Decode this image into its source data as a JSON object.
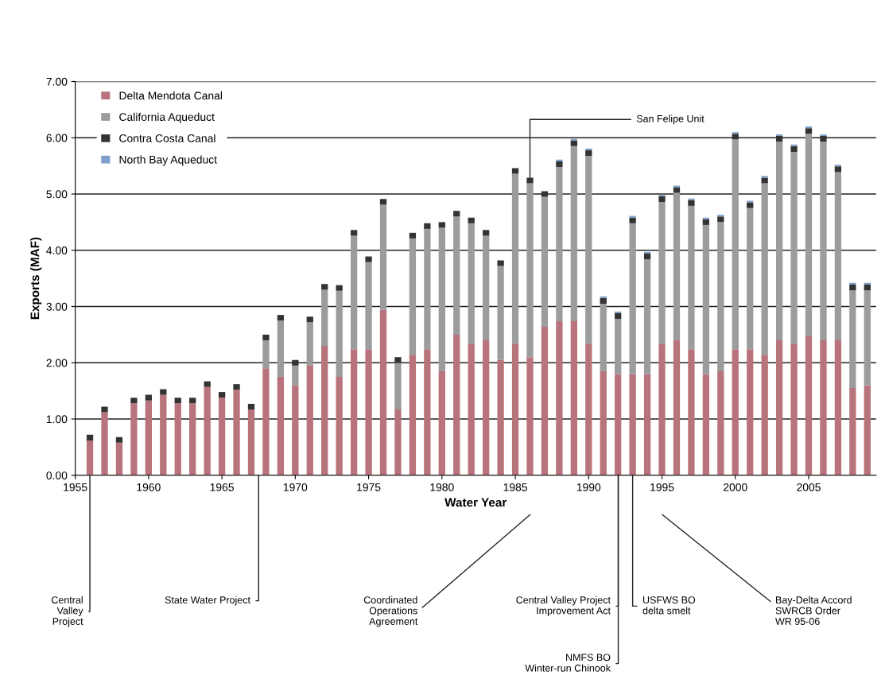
{
  "chart_data": {
    "type": "bar",
    "stacked": true,
    "xlabel": "Water Year",
    "ylabel": "Exports (MAF)",
    "x": [
      1956,
      1957,
      1958,
      1959,
      1960,
      1961,
      1962,
      1963,
      1964,
      1965,
      1966,
      1967,
      1968,
      1969,
      1970,
      1971,
      1972,
      1973,
      1974,
      1975,
      1976,
      1977,
      1978,
      1979,
      1980,
      1981,
      1982,
      1983,
      1984,
      1985,
      1986,
      1987,
      1988,
      1989,
      1990,
      1991,
      1992,
      1993,
      1994,
      1995,
      1996,
      1997,
      1998,
      1999,
      2000,
      2001,
      2002,
      2003,
      2004,
      2005,
      2006,
      2007,
      2008,
      2009
    ],
    "series": [
      {
        "name": "Delta Mendota Canal",
        "color": "#b8737c",
        "values": [
          0.62,
          1.12,
          0.58,
          1.28,
          1.33,
          1.43,
          1.28,
          1.28,
          1.57,
          1.38,
          1.52,
          1.17,
          1.9,
          1.75,
          1.6,
          1.95,
          2.3,
          1.75,
          2.24,
          2.24,
          2.94,
          1.17,
          2.14,
          2.24,
          1.85,
          2.5,
          2.34,
          2.4,
          2.05,
          2.34,
          2.1,
          2.64,
          2.74,
          2.74,
          2.34,
          1.85,
          1.8,
          1.8,
          1.8,
          2.34,
          2.41,
          2.24,
          1.8,
          1.85,
          2.24,
          2.24,
          2.14,
          2.4,
          2.34,
          2.47,
          2.4,
          2.4,
          1.55,
          1.6
        ]
      },
      {
        "name": "California Aqueduct",
        "color": "#9c9c9c",
        "values": [
          null,
          null,
          null,
          null,
          null,
          null,
          null,
          null,
          null,
          null,
          null,
          null,
          0.5,
          1.0,
          0.35,
          0.77,
          1.0,
          1.53,
          2.02,
          1.55,
          1.87,
          0.83,
          2.07,
          2.14,
          2.55,
          2.1,
          2.14,
          1.86,
          1.67,
          3.02,
          3.09,
          2.31,
          2.74,
          3.11,
          3.34,
          1.2,
          0.98,
          2.68,
          2.04,
          2.52,
          2.61,
          2.55,
          2.65,
          2.65,
          3.73,
          2.51,
          3.05,
          3.53,
          3.41,
          3.6,
          3.53,
          2.99,
          1.74,
          1.69
        ]
      },
      {
        "name": "Contra Costa Canal",
        "color": "#333333",
        "values": [
          0.1,
          0.1,
          0.1,
          0.1,
          0.1,
          0.1,
          0.1,
          0.1,
          0.1,
          0.1,
          0.1,
          0.1,
          0.1,
          0.1,
          0.1,
          0.1,
          0.1,
          0.1,
          0.1,
          0.1,
          0.1,
          0.1,
          0.1,
          0.1,
          0.1,
          0.1,
          0.1,
          0.1,
          0.1,
          0.1,
          0.1,
          0.1,
          0.1,
          0.1,
          0.1,
          0.1,
          0.1,
          0.1,
          0.1,
          0.1,
          0.1,
          0.1,
          0.1,
          0.1,
          0.1,
          0.1,
          0.1,
          0.1,
          0.1,
          0.1,
          0.1,
          0.1,
          0.1,
          0.1
        ]
      },
      {
        "name": "North Bay Aqueduct",
        "color": "#7f9fc8",
        "values": [
          null,
          null,
          null,
          null,
          null,
          null,
          null,
          null,
          null,
          null,
          null,
          null,
          null,
          null,
          null,
          null,
          null,
          null,
          null,
          null,
          null,
          null,
          null,
          null,
          null,
          null,
          null,
          null,
          null,
          null,
          null,
          null,
          0.03,
          0.03,
          0.03,
          0.03,
          0.03,
          0.03,
          0.03,
          0.03,
          0.03,
          0.03,
          0.03,
          0.03,
          0.03,
          0.03,
          0.03,
          0.03,
          0.03,
          0.03,
          0.03,
          0.03,
          0.03,
          0.03
        ]
      }
    ],
    "xlim": [
      1955,
      2009.6
    ],
    "xticks": [
      1955,
      1960,
      1965,
      1970,
      1975,
      1980,
      1985,
      1990,
      1995,
      2000,
      2005
    ],
    "ylim": [
      0,
      7
    ],
    "yticks": [
      {
        "value": 0,
        "label": "0.00"
      },
      {
        "value": 1,
        "label": "1.00"
      },
      {
        "value": 2,
        "label": "2.00"
      },
      {
        "value": 3,
        "label": "3.00"
      },
      {
        "value": 4,
        "label": "4.00"
      },
      {
        "value": 5,
        "label": "5.00"
      },
      {
        "value": 6,
        "label": "6.00"
      },
      {
        "value": 7,
        "label": "7.00"
      }
    ],
    "grid": "y",
    "legend": "top left",
    "annotations": [
      "Central\nValley\nProject",
      "State Water Project",
      "Coordinated\nOperations\nAgreement",
      "Central Valley Project\nImprovement Act",
      "NMFS BO\nWinter-run Chinook",
      {
        "text": "USFWS BO\ndelta smelt",
        "x": 1993,
        "y": 0
      },
      "Bay-Delta Accord\nSWRCB Order\nWR 95-06",
      {
        "text": "San Felipe Unit",
        "x": 1986,
        "y": 5.29
      }
    ]
  }
}
